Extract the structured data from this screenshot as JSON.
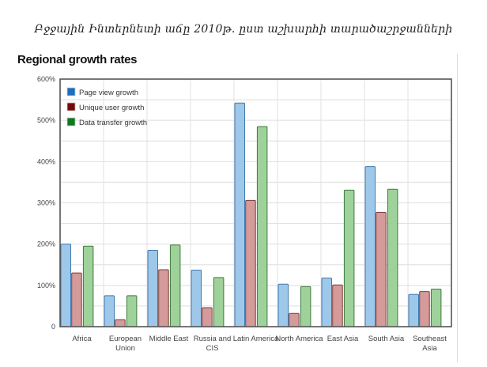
{
  "caption": "Բջջային Ինտերնետի աճը 2010թ. ըստ աշխարհի տարածաշրջանների",
  "chart_data": {
    "type": "bar",
    "title": "Regional growth rates",
    "xlabel": "",
    "ylabel": "",
    "ylim": [
      0,
      600
    ],
    "yticks": [
      0,
      100,
      200,
      300,
      400,
      500,
      600
    ],
    "ytick_labels": [
      "0",
      "100%",
      "200%",
      "300%",
      "400%",
      "500%",
      "600%"
    ],
    "grid": true,
    "legend_position": "top-left",
    "categories": [
      "Africa",
      "European Union",
      "Middle East",
      "Russia and CIS",
      "Latin America",
      "North America",
      "East Asia",
      "South Asia",
      "Southeast Asia"
    ],
    "category_label_lines": [
      [
        "Africa"
      ],
      [
        "European",
        "Union"
      ],
      [
        "Middle East"
      ],
      [
        "Russia and",
        "CIS"
      ],
      [
        "Latin America"
      ],
      [
        "North America"
      ],
      [
        "East Asia"
      ],
      [
        "South Asia"
      ],
      [
        "Southeast",
        "Asia"
      ]
    ],
    "series": [
      {
        "name": "Page view growth",
        "color": "#1a6fc0",
        "bar_fill": "#9ec8ea",
        "bar_stroke": "#3f78ad",
        "values": [
          200,
          75,
          185,
          137,
          542,
          103,
          118,
          388,
          78
        ]
      },
      {
        "name": "Unique user growth",
        "color": "#7a0a0a",
        "bar_fill": "#d59a9a",
        "bar_stroke": "#7c3a3a",
        "values": [
          130,
          17,
          138,
          46,
          306,
          32,
          101,
          277,
          85
        ]
      },
      {
        "name": "Data transfer growth",
        "color": "#0f7a1a",
        "bar_fill": "#9fd19a",
        "bar_stroke": "#3f7a3c",
        "values": [
          195,
          75,
          198,
          119,
          485,
          97,
          331,
          333,
          91
        ]
      }
    ]
  }
}
